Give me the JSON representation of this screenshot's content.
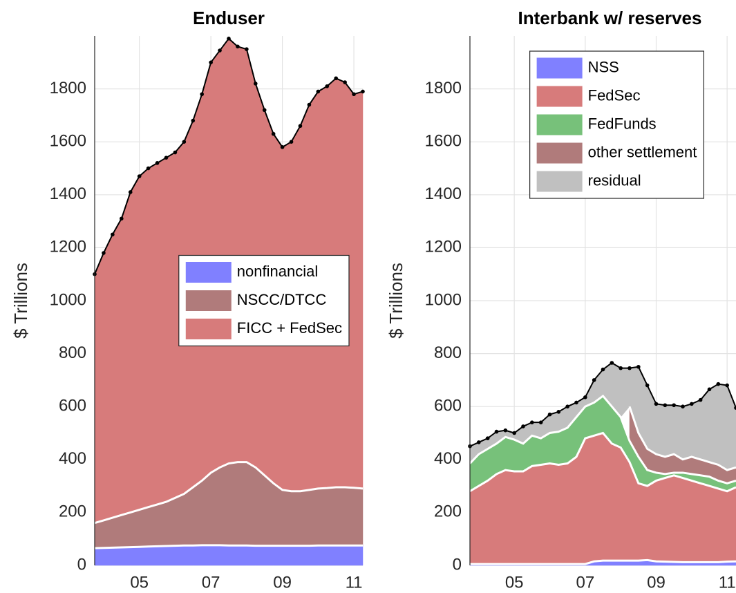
{
  "chart_data": [
    {
      "type": "stacked-area",
      "title": "Enduser",
      "ylabel": "$ Trillions",
      "x": [
        2003.75,
        2004,
        2004.25,
        2004.5,
        2004.75,
        2005,
        2005.25,
        2005.5,
        2005.75,
        2006,
        2006.25,
        2006.5,
        2006.75,
        2007,
        2007.25,
        2007.5,
        2007.75,
        2008,
        2008.25,
        2008.5,
        2008.75,
        2009,
        2009.25,
        2009.5,
        2009.75,
        2010,
        2010.25,
        2010.5,
        2010.75,
        2011,
        2011.25
      ],
      "xlim": [
        2003.75,
        2011.25
      ],
      "xticks": [
        {
          "value": 2005,
          "label": "05"
        },
        {
          "value": 2007,
          "label": "07"
        },
        {
          "value": 2009,
          "label": "09"
        },
        {
          "value": 2011,
          "label": "11"
        }
      ],
      "ylim": [
        0,
        2000
      ],
      "yticks": [
        0,
        200,
        400,
        600,
        800,
        1000,
        1200,
        1400,
        1600,
        1800
      ],
      "grid": true,
      "legend": "center right",
      "series": [
        {
          "name": "nonfinancial",
          "color": "#8080ff",
          "values": [
            65,
            66,
            67,
            68,
            69,
            70,
            71,
            72,
            73,
            74,
            75,
            75,
            76,
            76,
            76,
            75,
            75,
            75,
            74,
            74,
            74,
            74,
            74,
            74,
            74,
            75,
            75,
            75,
            75,
            75,
            75
          ]
        },
        {
          "name": "NSCC/DTCC",
          "color": "#b07b7b",
          "values": [
            95,
            104,
            113,
            122,
            131,
            140,
            149,
            158,
            167,
            181,
            195,
            220,
            244,
            274,
            294,
            310,
            315,
            315,
            296,
            266,
            236,
            211,
            206,
            206,
            211,
            215,
            217,
            220,
            220,
            218,
            215
          ]
        },
        {
          "name": "FICC + FedSec",
          "color": "#d77b7b",
          "values": [
            940,
            1010,
            1070,
            1120,
            1210,
            1260,
            1280,
            1290,
            1300,
            1305,
            1330,
            1385,
            1460,
            1550,
            1575,
            1605,
            1570,
            1560,
            1450,
            1380,
            1320,
            1295,
            1320,
            1380,
            1455,
            1500,
            1518,
            1545,
            1530,
            1487,
            1500
          ]
        }
      ]
    },
    {
      "type": "stacked-area",
      "title": "Interbank w/ reserves",
      "ylabel": "$ Trillions",
      "x": [
        2003.75,
        2004,
        2004.25,
        2004.5,
        2004.75,
        2005,
        2005.25,
        2005.5,
        2005.75,
        2006,
        2006.25,
        2006.5,
        2006.75,
        2007,
        2007.25,
        2007.5,
        2007.75,
        2008,
        2008.25,
        2008.5,
        2008.75,
        2009,
        2009.25,
        2009.5,
        2009.75,
        2010,
        2010.25,
        2010.5,
        2010.75,
        2011,
        2011.25
      ],
      "xlim": [
        2003.75,
        2011.25
      ],
      "xticks": [
        {
          "value": 2005,
          "label": "05"
        },
        {
          "value": 2007,
          "label": "07"
        },
        {
          "value": 2009,
          "label": "09"
        },
        {
          "value": 2011,
          "label": "11"
        }
      ],
      "ylim": [
        0,
        2000
      ],
      "yticks": [
        0,
        200,
        400,
        600,
        800,
        1000,
        1200,
        1400,
        1600,
        1800
      ],
      "grid": true,
      "legend": "upper center",
      "series": [
        {
          "name": "NSS",
          "color": "#8080ff",
          "values": [
            5,
            5,
            5,
            5,
            5,
            5,
            5,
            5,
            5,
            5,
            5,
            5,
            5,
            5,
            15,
            18,
            18,
            18,
            18,
            18,
            20,
            15,
            14,
            13,
            12,
            12,
            12,
            12,
            12,
            14,
            15
          ]
        },
        {
          "name": "FedSec",
          "color": "#d77b7b",
          "values": [
            275,
            295,
            315,
            340,
            355,
            350,
            350,
            370,
            375,
            380,
            375,
            380,
            405,
            475,
            475,
            482,
            442,
            427,
            372,
            292,
            280,
            305,
            316,
            327,
            318,
            308,
            298,
            288,
            278,
            266,
            280
          ]
        },
        {
          "name": "FedFunds",
          "color": "#77c17a",
          "values": [
            105,
            120,
            120,
            115,
            125,
            120,
            105,
            115,
            100,
            115,
            125,
            135,
            150,
            120,
            125,
            140,
            140,
            115,
            80,
            100,
            60,
            30,
            15,
            10,
            20,
            25,
            30,
            35,
            30,
            30,
            25
          ]
        },
        {
          "name": "other settlement",
          "color": "#b07b7b",
          "values": [
            null,
            null,
            null,
            null,
            null,
            null,
            null,
            null,
            null,
            null,
            null,
            null,
            null,
            null,
            null,
            null,
            null,
            null,
            130,
            90,
            80,
            70,
            65,
            70,
            50,
            65,
            60,
            55,
            60,
            50,
            50
          ]
        },
        {
          "name": "residual",
          "color": "#c0c0c0",
          "values": [
            65,
            45,
            40,
            45,
            25,
            25,
            65,
            50,
            60,
            70,
            75,
            80,
            55,
            35,
            85,
            100,
            165,
            185,
            145,
            250,
            240,
            190,
            195,
            185,
            200,
            200,
            225,
            275,
            305,
            320,
            225
          ]
        }
      ]
    }
  ]
}
